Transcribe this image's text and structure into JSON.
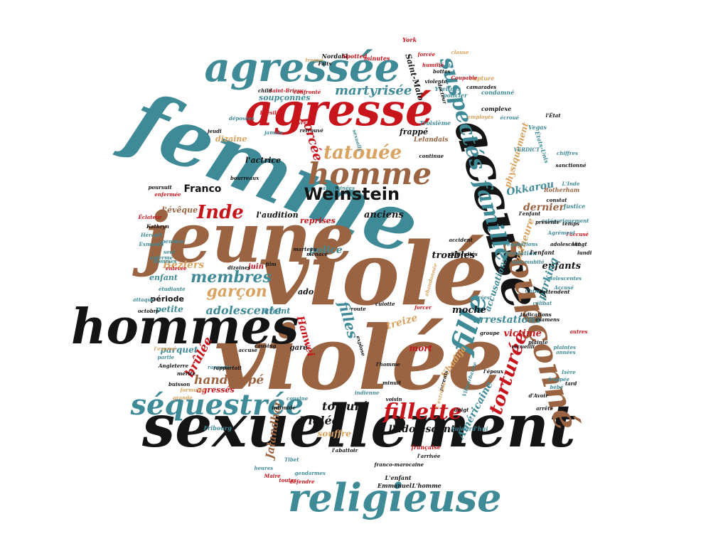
{
  "palette": {
    "teal": "#3f8a97",
    "brown": "#9a6342",
    "red": "#c8141b",
    "black": "#141414",
    "tan": "#d9a25f"
  },
  "words": [
    {
      "id": "violee",
      "text": "violée",
      "color": "brown"
    },
    {
      "id": "viole",
      "text": "violé",
      "color": "brown"
    },
    {
      "id": "femme",
      "text": "femme",
      "color": "teal"
    },
    {
      "id": "jeune",
      "text": "jeune",
      "color": "brown"
    },
    {
      "id": "sexuellement",
      "text": "sexuellement",
      "color": "black"
    },
    {
      "id": "hommes",
      "text": "hommes",
      "color": "black"
    },
    {
      "id": "accuse",
      "text": "accusé",
      "color": "black"
    },
    {
      "id": "agresse",
      "text": "agressé",
      "color": "red"
    },
    {
      "id": "agressee",
      "text": "agressée",
      "color": "teal"
    },
    {
      "id": "religieuse",
      "text": "religieuse",
      "color": "teal"
    },
    {
      "id": "soupconne",
      "text": "soupçonné",
      "color": "brown"
    },
    {
      "id": "sequestree",
      "text": "séquestrée",
      "color": "teal"
    },
    {
      "id": "homme",
      "text": "homme",
      "color": "brown"
    },
    {
      "id": "fille",
      "text": "fille",
      "color": "teal"
    },
    {
      "id": "suspectes",
      "text": "suspectés",
      "color": "teal"
    },
    {
      "id": "famille",
      "text": "famille",
      "color": "teal"
    },
    {
      "id": "fillette",
      "text": "fillette",
      "color": "red"
    },
    {
      "id": "torturee",
      "text": "torturée",
      "color": "red"
    },
    {
      "id": "tatouee",
      "text": "tatouée",
      "color": "tan"
    },
    {
      "id": "weinstein",
      "text": "Weinstein",
      "color": "black"
    },
    {
      "id": "inde",
      "text": "Inde",
      "color": "red"
    },
    {
      "id": "membres",
      "text": "membres",
      "color": "teal"
    },
    {
      "id": "garcon",
      "text": "garçon",
      "color": "tan"
    },
    {
      "id": "filles",
      "text": "filles",
      "color": "teal"
    },
    {
      "id": "martyrisee",
      "text": "martyrisée",
      "color": "teal"
    },
    {
      "id": "force",
      "text": "forcée",
      "color": "red"
    },
    {
      "id": "handicape",
      "text": "handicapé",
      "color": "brown"
    },
    {
      "id": "brulee",
      "text": "brûlée",
      "color": "red"
    },
    {
      "id": "adolescente",
      "text": "adolescente",
      "color": "teal"
    },
    {
      "id": "torture",
      "text": "torturé",
      "color": "black"
    },
    {
      "id": "violee2",
      "text": "Violée",
      "color": "black"
    },
    {
      "id": "jalandhar",
      "text": "Jalandhar",
      "color": "brown"
    },
    {
      "id": "ladolescente",
      "text": "l'adolescente",
      "color": "black"
    },
    {
      "id": "americaine",
      "text": "Américaine",
      "color": "teal"
    },
    {
      "id": "arrestations",
      "text": "arrestations",
      "color": "teal"
    },
    {
      "id": "victime",
      "text": "victime",
      "color": "red"
    },
    {
      "id": "moche",
      "text": "moche",
      "color": "black"
    },
    {
      "id": "beziers",
      "text": "Béziers",
      "color": "tan"
    },
    {
      "id": "police",
      "text": "police",
      "color": "teal"
    },
    {
      "id": "franco",
      "text": "Franco",
      "color": "black"
    },
    {
      "id": "anciens",
      "text": "anciens",
      "color": "black"
    },
    {
      "id": "troubles",
      "text": "troubles",
      "color": "black"
    },
    {
      "id": "enfants",
      "text": "enfants",
      "color": "black"
    },
    {
      "id": "dernier",
      "text": "dernier",
      "color": "brown"
    },
    {
      "id": "okkarou",
      "text": "Okkarou",
      "color": "teal"
    },
    {
      "id": "parking",
      "text": "parking",
      "color": "teal"
    },
    {
      "id": "mineure",
      "text": "mineure",
      "color": "tan"
    },
    {
      "id": "physiquement",
      "text": "physiquement",
      "color": "tan"
    },
    {
      "id": "accusations",
      "text": "accusations",
      "color": "teal"
    },
    {
      "id": "treize",
      "text": "treize",
      "color": "tan"
    },
    {
      "id": "hanwei",
      "text": "Hanwei",
      "color": "red"
    },
    {
      "id": "mort",
      "text": "mort",
      "color": "red"
    },
    {
      "id": "khadija",
      "text": "Khadija",
      "color": "tan"
    },
    {
      "id": "souffre",
      "text": "souffre",
      "color": "tan"
    },
    {
      "id": "agresses",
      "text": "agressés",
      "color": "red"
    },
    {
      "id": "parquet",
      "text": "parquet",
      "color": "teal"
    },
    {
      "id": "petite",
      "text": "petite",
      "color": "teal"
    },
    {
      "id": "craint",
      "text": "craint",
      "color": "teal"
    },
    {
      "id": "ado",
      "text": "ado",
      "color": "black"
    },
    {
      "id": "periode",
      "text": "période",
      "color": "black"
    },
    {
      "id": "dizaine",
      "text": "dizaine",
      "color": "tan"
    },
    {
      "id": "lactrice",
      "text": "l'actrice",
      "color": "black"
    },
    {
      "id": "leveque",
      "text": "l'évêque",
      "color": "brown"
    },
    {
      "id": "laudition",
      "text": "l'audition",
      "color": "black"
    },
    {
      "id": "reprises",
      "text": "reprises",
      "color": "red"
    },
    {
      "id": "juin",
      "text": "juin",
      "color": "red"
    },
    {
      "id": "enfant",
      "text": "enfant",
      "color": "teal"
    },
    {
      "id": "frappe",
      "text": "frappé",
      "color": "black"
    },
    {
      "id": "soupconnes",
      "text": "soupçonnés",
      "color": "teal"
    },
    {
      "id": "saintmalo",
      "text": "Saint-Malo",
      "color": "black"
    },
    {
      "id": "gare",
      "text": "gare",
      "color": "black"
    },
    {
      "id": "Lelandais",
      "text": "Lelandais",
      "color": "brown"
    },
    {
      "id": "etatsunis",
      "text": "États-Unis",
      "color": "teal"
    },
    {
      "id": "justice",
      "text": "Justice",
      "color": "teal"
    },
    {
      "id": "rotherham",
      "text": "Rotherham",
      "color": "brown"
    },
    {
      "id": "arrestation",
      "text": "arrestation",
      "color": "teal"
    },
    {
      "id": "lenfant",
      "text": "l'enfant",
      "color": "black"
    },
    {
      "id": "adolescents",
      "text": "adolescentes",
      "color": "teal"
    },
    {
      "id": "fribourg",
      "text": "Fribourg",
      "color": "teal"
    },
    {
      "id": "emmanuel",
      "text": "Emmanuel",
      "color": "black"
    },
    {
      "id": "lhomme",
      "text": "L'homme",
      "color": "black"
    },
    {
      "id": "lenfant2",
      "text": "L'enfant",
      "color": "black"
    },
    {
      "id": "francaise",
      "text": "française",
      "color": "red"
    },
    {
      "id": "aujourdhui",
      "text": "Aujourd'hui",
      "color": "teal"
    },
    {
      "id": "villeurb",
      "text": "Villeurbanne",
      "color": "teal"
    },
    {
      "id": "vegas",
      "text": "Vegas",
      "color": "teal"
    },
    {
      "id": "complexe",
      "text": "complexe",
      "color": "black"
    },
    {
      "id": "condamne",
      "text": "condamné",
      "color": "teal"
    },
    {
      "id": "york",
      "text": "York",
      "color": "red"
    },
    {
      "id": "nordahl",
      "text": "Nordahl",
      "color": "black"
    },
    {
      "id": "spotted",
      "text": "Spotted",
      "color": "red"
    },
    {
      "id": "minutes",
      "text": "minutes",
      "color": "red"
    },
    {
      "id": "trouve",
      "text": "trouvé",
      "color": "tan"
    },
    {
      "id": "ecole",
      "text": "école",
      "color": "teal"
    },
    {
      "id": "yvelines",
      "text": "Yvelines",
      "color": "teal"
    },
    {
      "id": "rupture",
      "text": "rupture",
      "color": "tan"
    },
    {
      "id": "policier",
      "text": "policier",
      "color": "teal"
    },
    {
      "id": "toxique",
      "text": "Troisième",
      "color": "teal"
    },
    {
      "id": "kathryn",
      "text": "Kathryn",
      "color": "black"
    },
    {
      "id": "exmouth",
      "text": "Exmouth",
      "color": "teal"
    },
    {
      "id": "herault",
      "text": "Hérault",
      "color": "teal"
    },
    {
      "id": "eclateur",
      "text": "Éclateur",
      "color": "red"
    },
    {
      "id": "bresil",
      "text": "Brésil",
      "color": "red"
    },
    {
      "id": "saintbrieuc",
      "text": "Saint-Brieuc",
      "color": "red"
    },
    {
      "id": "enfermee",
      "text": "enfermée",
      "color": "red"
    },
    {
      "id": "rapporte",
      "text": "rapporte",
      "color": "teal"
    },
    {
      "id": "defendre",
      "text": "défendre",
      "color": "red"
    },
    {
      "id": "gendarmes",
      "text": "gendarmes",
      "color": "teal"
    },
    {
      "id": "marseille",
      "text": "Maire",
      "color": "red"
    },
    {
      "id": "heures",
      "text": "heures",
      "color": "teal"
    },
    {
      "id": "toutes",
      "text": "toutes",
      "color": "red"
    },
    {
      "id": "tibet",
      "text": "Tibet",
      "color": "teal"
    },
    {
      "id": "angleterre",
      "text": "Angleterre",
      "color": "black"
    },
    {
      "id": "buisson",
      "text": "buisson",
      "color": "black"
    },
    {
      "id": "octobre",
      "text": "octobre",
      "color": "black"
    },
    {
      "id": "aggressif",
      "text": "attaque",
      "color": "teal"
    },
    {
      "id": "etudiante",
      "text": "étudiante",
      "color": "teal"
    },
    {
      "id": "lexamen",
      "text": "l'exposé",
      "color": "tan"
    },
    {
      "id": "celibat",
      "text": "célibat",
      "color": "teal"
    },
    {
      "id": "chine",
      "text": "Chine",
      "color": "teal"
    },
    {
      "id": "accuse2",
      "text": "Accusé",
      "color": "teal"
    },
    {
      "id": "lundi",
      "text": "lundi",
      "color": "black"
    },
    {
      "id": "vingt",
      "text": "Vingt",
      "color": "black"
    },
    {
      "id": "temps",
      "text": "temps",
      "color": "black"
    },
    {
      "id": "plainte",
      "text": "plaintes",
      "color": "teal"
    },
    {
      "id": "autres",
      "text": "autres",
      "color": "red"
    },
    {
      "id": "isere",
      "text": "Isère",
      "color": "teal"
    },
    {
      "id": "frappee",
      "text": "frappée",
      "color": "teal"
    },
    {
      "id": "bebe",
      "text": "bébé",
      "color": "teal"
    },
    {
      "id": "annees",
      "text": "années",
      "color": "teal"
    },
    {
      "id": "tard",
      "text": "tard",
      "color": "black"
    },
    {
      "id": "arrete",
      "text": "arrêté",
      "color": "black"
    },
    {
      "id": "davoir",
      "text": "d'Avoir",
      "color": "black"
    },
    {
      "id": "doigt",
      "text": "doigt",
      "color": "black"
    },
    {
      "id": "indienne",
      "text": "indienne",
      "color": "teal"
    },
    {
      "id": "intimide",
      "text": "intimidé",
      "color": "black"
    },
    {
      "id": "vingtaine",
      "text": "minuit",
      "color": "black"
    },
    {
      "id": "cousine",
      "text": "cousine",
      "color": "teal"
    },
    {
      "id": "francomarocaine",
      "text": "franco-marocaine",
      "color": "black"
    },
    {
      "id": "adolescent",
      "text": "adolescent",
      "color": "black"
    },
    {
      "id": "laccuse",
      "text": "l'accusé",
      "color": "red"
    },
    {
      "id": "agrement",
      "text": "Agrément",
      "color": "teal"
    },
    {
      "id": "coupable",
      "text": "Coupable",
      "color": "red"
    },
    {
      "id": "camarades",
      "text": "camarades",
      "color": "black"
    },
    {
      "id": "humilie",
      "text": "humilié",
      "color": "red"
    },
    {
      "id": "clause",
      "text": "clause",
      "color": "tan"
    },
    {
      "id": "bottes",
      "text": "bottes",
      "color": "black"
    },
    {
      "id": "violente",
      "text": "violente",
      "color": "black"
    },
    {
      "id": "ecroue",
      "text": "écroué",
      "color": "teal"
    },
    {
      "id": "employes",
      "text": "employés",
      "color": "tan"
    },
    {
      "id": "leta",
      "text": "l'État",
      "color": "black"
    },
    {
      "id": "chiffres",
      "text": "chiffres",
      "color": "teal"
    },
    {
      "id": "verdict",
      "text": "VERDICT",
      "color": "teal"
    },
    {
      "id": "lointaine",
      "text": "L'Inde",
      "color": "teal"
    },
    {
      "id": "categoriquement",
      "text": "catégoriquement",
      "color": "teal"
    },
    {
      "id": "presente",
      "text": "présente",
      "color": "black"
    },
    {
      "id": "nonmajeur",
      "text": "non-mubité",
      "color": "teal"
    },
    {
      "id": "requisitions",
      "text": "réquisitions",
      "color": "teal"
    },
    {
      "id": "difficultes",
      "text": "difficultés",
      "color": "black"
    },
    {
      "id": "pension",
      "text": "pension",
      "color": "teal"
    },
    {
      "id": "enferme",
      "text": "enfermé",
      "color": "teal"
    },
    {
      "id": "poursuit",
      "text": "poursuit",
      "color": "black"
    },
    {
      "id": "bourreaux",
      "text": "bourreaux",
      "color": "black"
    },
    {
      "id": "assassinees",
      "text": "assassinées",
      "color": "teal"
    },
    {
      "id": "marteau",
      "text": "marteau",
      "color": "black"
    },
    {
      "id": "menace",
      "text": "menacé",
      "color": "black"
    },
    {
      "id": "film",
      "text": "film",
      "color": "black"
    },
    {
      "id": "dizaines",
      "text": "dizaines",
      "color": "black"
    },
    {
      "id": "enlevee",
      "text": "enlevée",
      "color": "red"
    },
    {
      "id": "seul",
      "text": "seul",
      "color": "teal"
    },
    {
      "id": "hommes2",
      "text": "hommes",
      "color": "teal"
    },
    {
      "id": "sexually",
      "text": "sexually",
      "color": "teal"
    },
    {
      "id": "jamais",
      "text": "jamais",
      "color": "teal"
    },
    {
      "id": "jeudi",
      "text": "jeudi",
      "color": "black"
    },
    {
      "id": "vivre",
      "text": "vivre",
      "color": "red"
    },
    {
      "id": "confronte",
      "text": "confronté",
      "color": "red"
    },
    {
      "id": "child",
      "text": "child",
      "color": "black"
    },
    {
      "id": "deposees",
      "text": "déposées",
      "color": "teal"
    },
    {
      "id": "faits",
      "text": "Faits",
      "color": "black"
    },
    {
      "id": "forcee2",
      "text": "forcée",
      "color": "red"
    },
    {
      "id": "continue",
      "text": "continue",
      "color": "black"
    },
    {
      "id": "docteur",
      "text": "docteur",
      "color": "black"
    },
    {
      "id": "rapportait",
      "text": "rapportait",
      "color": "black"
    },
    {
      "id": "mentir",
      "text": "mérite",
      "color": "black"
    },
    {
      "id": "partie",
      "text": "partie",
      "color": "teal"
    },
    {
      "id": "retrouve",
      "text": "retrouvé",
      "color": "black"
    },
    {
      "id": "causing",
      "text": "causing",
      "color": "black"
    },
    {
      "id": "accuse3",
      "text": "accuse",
      "color": "black"
    },
    {
      "id": "route",
      "text": "route",
      "color": "black"
    },
    {
      "id": "culotte",
      "text": "culotte",
      "color": "black"
    },
    {
      "id": "explose",
      "text": "explose",
      "color": "black"
    },
    {
      "id": "abandonnee",
      "text": "abandonnée",
      "color": "tan"
    },
    {
      "id": "formule",
      "text": "formulée",
      "color": "tan"
    },
    {
      "id": "grande",
      "text": "grande",
      "color": "tan"
    },
    {
      "id": "soirees",
      "text": "soirées",
      "color": "teal"
    },
    {
      "id": "parents",
      "text": "parents",
      "color": "black"
    },
    {
      "id": "voisin",
      "text": "voisin",
      "color": "black"
    },
    {
      "id": "recueilli",
      "text": "recueilli",
      "color": "black"
    },
    {
      "id": "lepoux",
      "text": "l'époux",
      "color": "black"
    },
    {
      "id": "groupe",
      "text": "groupe",
      "color": "black"
    },
    {
      "id": "examens",
      "text": "examens",
      "color": "black"
    },
    {
      "id": "indications",
      "text": "indications",
      "color": "black"
    },
    {
      "id": "prochain",
      "text": "plainte",
      "color": "black"
    },
    {
      "id": "lattendent",
      "text": "l'attendent",
      "color": "black"
    },
    {
      "id": "accident",
      "text": "accident",
      "color": "black"
    },
    {
      "id": "lextreme",
      "text": "L'extrême",
      "color": "tan"
    },
    {
      "id": "forcer",
      "text": "forcer",
      "color": "red"
    },
    {
      "id": "lenfant3",
      "text": "l'enfant",
      "color": "black"
    },
    {
      "id": "constat",
      "text": "constat",
      "color": "black"
    },
    {
      "id": "sanctionne",
      "text": "sanctionné",
      "color": "black"
    },
    {
      "id": "lhomme2",
      "text": "l'homme",
      "color": "black"
    },
    {
      "id": "labattoir",
      "text": "l'abattoir",
      "color": "black"
    },
    {
      "id": "lebree",
      "text": "l'arrivée",
      "color": "black"
    }
  ]
}
